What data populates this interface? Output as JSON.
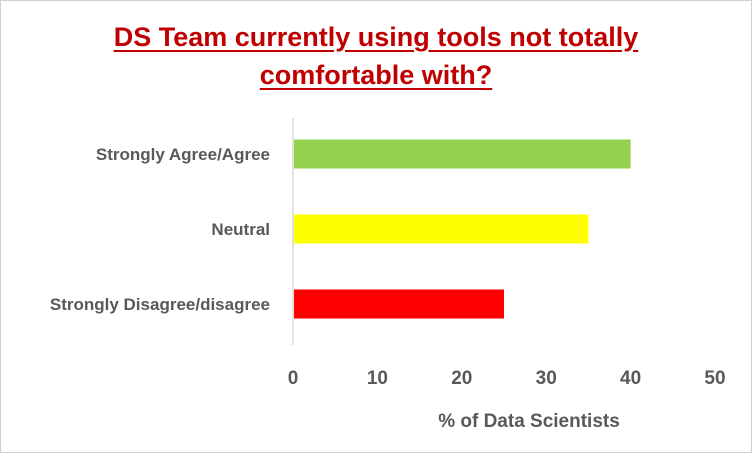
{
  "chart_data": {
    "type": "bar",
    "orientation": "horizontal",
    "title_lines": [
      "DS Team currently using tools not totally",
      "comfortable with?"
    ],
    "categories": [
      "Strongly Agree/Agree",
      "Neutral",
      "Strongly Disagree/disagree"
    ],
    "values": [
      40,
      35,
      25
    ],
    "bar_colors": [
      "#92d050",
      "#ffff00",
      "#ff0000"
    ],
    "xlim": [
      0,
      50
    ],
    "xticks": [
      "0",
      "10",
      "20",
      "30",
      "40",
      "50"
    ],
    "xlabel": "% of Data Scientists",
    "ylabel": "",
    "grid": false,
    "legend": "none",
    "colors": {
      "title": "#c00000",
      "text": "#595959",
      "axis": "#d9d9d9"
    }
  }
}
